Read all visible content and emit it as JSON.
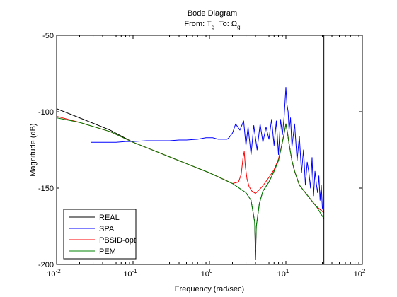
{
  "chart_data": {
    "type": "line",
    "title": "Bode Diagram",
    "subtitle": {
      "from_prefix": "From: T",
      "from_sub": "g",
      "to_prefix": "To: Ω",
      "to_sub": "g"
    },
    "xlabel": "Frequency  (rad/sec)",
    "ylabel": "Magnitude (dB)",
    "x_scale": "log",
    "xlim": [
      0.01,
      100
    ],
    "ylim": [
      -200,
      -50
    ],
    "x_ticks": [
      {
        "value": 0.01,
        "base": "10",
        "exp": "-2"
      },
      {
        "value": 0.1,
        "base": "10",
        "exp": "-1"
      },
      {
        "value": 1,
        "base": "10",
        "exp": "0"
      },
      {
        "value": 10,
        "base": "10",
        "exp": "1"
      },
      {
        "value": 100,
        "base": "10",
        "exp": "2"
      }
    ],
    "y_ticks": [
      {
        "value": -50,
        "label": "-50"
      },
      {
        "value": -100,
        "label": "-100"
      },
      {
        "value": -150,
        "label": "-150"
      },
      {
        "value": -200,
        "label": "-200"
      }
    ],
    "grid": false,
    "legend_position": "bottom-left",
    "vertical_marker_x": 31.4,
    "series": [
      {
        "name": "REAL",
        "color": "#000000",
        "x": [
          0.01,
          0.02,
          0.05,
          0.1,
          0.2,
          0.5,
          1,
          2,
          3,
          3.5,
          3.9,
          4.0,
          4.1,
          4.5,
          5,
          6,
          7,
          8,
          9,
          9.5,
          10,
          10.5,
          11,
          12,
          13,
          15,
          20,
          25,
          31.4
        ],
        "y": [
          -98,
          -104,
          -112,
          -120,
          -126,
          -134,
          -140,
          -147,
          -153,
          -158,
          -172,
          -197,
          -175,
          -160,
          -152,
          -146,
          -139,
          -132,
          -120,
          -114,
          -108,
          -114,
          -121,
          -132,
          -139,
          -148,
          -156,
          -162,
          -166
        ]
      },
      {
        "name": "SPA",
        "color": "#0000ff",
        "x": [
          0.028,
          0.04,
          0.06,
          0.08,
          0.1,
          0.15,
          0.2,
          0.3,
          0.4,
          0.5,
          0.7,
          0.9,
          1.1,
          1.3,
          1.5,
          1.7,
          1.8,
          2.0,
          2.2,
          2.5,
          2.8,
          3.0,
          3.2,
          3.5,
          3.8,
          4.2,
          4.6,
          5.0,
          5.5,
          6.0,
          6.5,
          7.0,
          7.5,
          8.0,
          8.5,
          9.0,
          9.5,
          10.0,
          10.3,
          10.7,
          11.0,
          11.5,
          12,
          13,
          14,
          15,
          16,
          17,
          18,
          19,
          20,
          21,
          22,
          23,
          24,
          25,
          26,
          27,
          28,
          29,
          30,
          31.4
        ],
        "y": [
          -120,
          -120,
          -120,
          -119.5,
          -119.5,
          -119,
          -119,
          -119,
          -118.5,
          -118.5,
          -118,
          -117,
          -117,
          -118,
          -118,
          -118,
          -117,
          -114,
          -108,
          -112,
          -106,
          -122,
          -110,
          -128,
          -109,
          -125,
          -108,
          -120,
          -110,
          -118,
          -105,
          -122,
          -106,
          -128,
          -105,
          -115,
          -103,
          -84,
          -95,
          -100,
          -112,
          -104,
          -123,
          -108,
          -132,
          -116,
          -140,
          -125,
          -148,
          -133,
          -140,
          -150,
          -130,
          -155,
          -139,
          -147,
          -153,
          -142,
          -158,
          -148,
          -163,
          -166
        ]
      },
      {
        "name": "PBSID-opt",
        "color": "#ff0000",
        "x": [
          0.01,
          0.02,
          0.05,
          0.1,
          0.2,
          0.5,
          1,
          1.5,
          2,
          2.4,
          2.6,
          2.75,
          2.85,
          2.95,
          3.1,
          3.3,
          3.6,
          4.0,
          4.5,
          5,
          6,
          7,
          8,
          9,
          9.5,
          10,
          10.5,
          11,
          12,
          13,
          15,
          20,
          25,
          31.4
        ],
        "y": [
          -103,
          -107,
          -113,
          -120,
          -126,
          -134,
          -140,
          -144,
          -147,
          -146,
          -141,
          -130,
          -126,
          -136,
          -144,
          -149,
          -152,
          -153.5,
          -151,
          -148.5,
          -143,
          -138,
          -131,
          -120,
          -114,
          -108,
          -114,
          -121,
          -132,
          -139,
          -148,
          -156,
          -162,
          -166
        ]
      },
      {
        "name": "PEM",
        "color": "#008000",
        "x": [
          0.01,
          0.02,
          0.05,
          0.1,
          0.2,
          0.5,
          1,
          2,
          3,
          3.5,
          3.9,
          4.0,
          4.1,
          4.5,
          5,
          6,
          7,
          8,
          9,
          9.5,
          10,
          10.5,
          11,
          12,
          13,
          15,
          20,
          25,
          31.4
        ],
        "y": [
          -104,
          -107,
          -113,
          -120,
          -126,
          -134,
          -140,
          -147,
          -153,
          -158,
          -172,
          -190,
          -175,
          -160,
          -152,
          -146,
          -139,
          -132,
          -120,
          -114,
          -108,
          -114,
          -121,
          -132,
          -139,
          -148,
          -156,
          -162,
          -170
        ]
      }
    ]
  }
}
